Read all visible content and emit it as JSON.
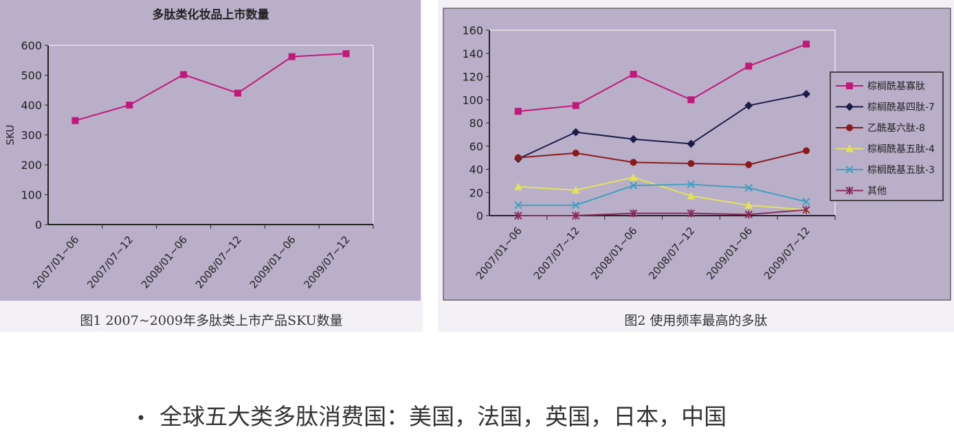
{
  "chart_data": [
    {
      "type": "line",
      "title": "多肽类化妆品上市数量",
      "xlabel": "",
      "ylabel": "SKU",
      "ylim": [
        0,
        600
      ],
      "yticks": [
        0,
        100,
        200,
        300,
        400,
        500,
        600
      ],
      "categories": [
        "2007/01~06",
        "2007/07~12",
        "2008/01~06",
        "2008/07~12",
        "2009/01~06",
        "2009/07~12"
      ],
      "series": [
        {
          "values": [
            348,
            400,
            502,
            440,
            562,
            572
          ],
          "color": "#c2187a",
          "marker": "square"
        }
      ],
      "caption": "图1 2007~2009年多肽类上市产品SKU数量",
      "grid": false
    },
    {
      "type": "line",
      "title": "",
      "xlabel": "",
      "ylabel": "",
      "ylim": [
        0,
        160
      ],
      "yticks": [
        0,
        20,
        40,
        60,
        80,
        100,
        120,
        140,
        160
      ],
      "categories": [
        "2007/01~06",
        "2007/07~12",
        "2008/01~06",
        "2008/07~12",
        "2009/01~06",
        "2009/07~12"
      ],
      "legend": "right",
      "series": [
        {
          "name": "棕榈酰基寡肽",
          "values": [
            90,
            95,
            122,
            100,
            129,
            148
          ],
          "color": "#c2187a",
          "marker": "square"
        },
        {
          "name": "棕榈酰基四肽-7",
          "values": [
            49,
            72,
            66,
            62,
            95,
            105
          ],
          "color": "#1c1c48",
          "marker": "diamond"
        },
        {
          "name": "乙酰基六肽-8",
          "values": [
            50,
            54,
            46,
            45,
            44,
            56
          ],
          "color": "#8b1a1a",
          "marker": "circle"
        },
        {
          "name": "棕榈酰基五肽-4",
          "values": [
            25,
            22,
            33,
            17,
            9,
            5
          ],
          "color": "#e2e25a",
          "marker": "triangle"
        },
        {
          "name": "棕榈酰基五肽-3",
          "values": [
            9,
            9,
            26,
            27,
            24,
            12
          ],
          "color": "#3ea0c0",
          "marker": "x"
        },
        {
          "name": "其他",
          "values": [
            0,
            0,
            2,
            2,
            1,
            5
          ],
          "color": "#8a2a5a",
          "marker": "star"
        }
      ],
      "caption": "图2 使用频率最高的多肽",
      "grid": false
    }
  ],
  "bullet": "全球五大类多肽消费国：美国，法国，英国，日本，中国",
  "colors": {
    "chart_bg": "#b9afc9"
  }
}
